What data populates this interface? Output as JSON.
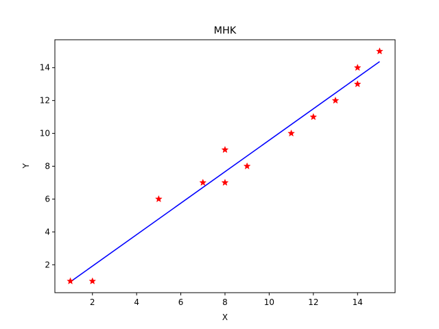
{
  "chart_data": {
    "type": "scatter",
    "title": "MHK",
    "xlabel": "X",
    "ylabel": "Y",
    "xlim": [
      0.3,
      15.7
    ],
    "ylim": [
      0.3,
      15.7
    ],
    "xticks": [
      2,
      4,
      6,
      8,
      10,
      12,
      14
    ],
    "yticks": [
      2,
      4,
      6,
      8,
      10,
      12,
      14
    ],
    "grid": false,
    "points": {
      "marker": "star",
      "color": "#ff0000",
      "x": [
        1,
        2,
        5,
        7,
        8,
        8,
        9,
        11,
        12,
        13,
        14,
        14,
        15
      ],
      "y": [
        1,
        1,
        6,
        7,
        7,
        9,
        8,
        10,
        11,
        12,
        13,
        14,
        15
      ]
    },
    "fit_line": {
      "type": "line",
      "color": "#0000ff",
      "x": [
        1,
        15
      ],
      "y": [
        0.96,
        14.37
      ]
    }
  }
}
